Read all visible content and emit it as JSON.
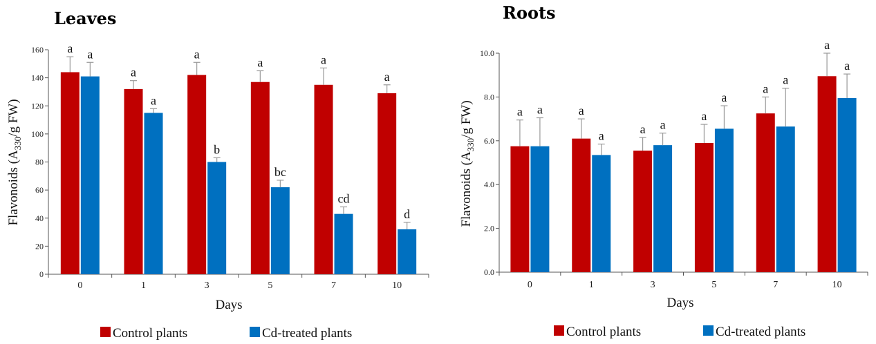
{
  "colors": {
    "control": "#c00000",
    "cd": "#0070c0"
  },
  "legend": {
    "control_label": "Control plants",
    "cd_label": "Cd-treated plants"
  },
  "chart_data": [
    {
      "type": "bar",
      "title": "Leaves",
      "xlabel": "Days",
      "ylabel": "Flavonoids (A330/g FW)",
      "ylabel_parts": {
        "pre": "Flavonoids (A",
        "sub": "330",
        "post": "/g FW)"
      },
      "ylim": [
        0,
        160
      ],
      "yticks": [
        0,
        20,
        40,
        60,
        80,
        100,
        120,
        140,
        160
      ],
      "ytick_labels": [
        "0",
        "20",
        "40",
        "60",
        "80",
        "100",
        "120",
        "140",
        "160"
      ],
      "categories": [
        "0",
        "1",
        "3",
        "5",
        "7",
        "10"
      ],
      "series": [
        {
          "name": "Control plants",
          "values": [
            144,
            132,
            142,
            137,
            135,
            129
          ],
          "errors": [
            11,
            6,
            9,
            8,
            12,
            6
          ],
          "letters": [
            "a",
            "a",
            "a",
            "a",
            "a",
            "a"
          ]
        },
        {
          "name": "Cd-treated plants",
          "values": [
            141,
            115,
            80,
            62,
            43,
            32
          ],
          "errors": [
            10,
            3,
            3,
            5,
            5,
            5
          ],
          "letters": [
            "a",
            "a",
            "b",
            "bc",
            "cd",
            "d"
          ]
        }
      ]
    },
    {
      "type": "bar",
      "title": "Roots",
      "xlabel": "Days",
      "ylabel": "Flavonoids (A330/g FW)",
      "ylabel_parts": {
        "pre": "Flavonoids (A",
        "sub": "330",
        "post": "/g FW)"
      },
      "ylim": [
        0,
        10
      ],
      "yticks": [
        0,
        2,
        4,
        6,
        8,
        10
      ],
      "ytick_labels": [
        "0.0",
        "2.0",
        "4.0",
        "6.0",
        "8.0",
        "10.0"
      ],
      "categories": [
        "0",
        "1",
        "3",
        "5",
        "7",
        "10"
      ],
      "series": [
        {
          "name": "Control plants",
          "values": [
            5.75,
            6.1,
            5.55,
            5.9,
            7.25,
            8.95
          ],
          "errors": [
            1.2,
            0.9,
            0.6,
            0.85,
            0.75,
            1.05
          ],
          "letters": [
            "a",
            "a",
            "a",
            "a",
            "a",
            "a"
          ]
        },
        {
          "name": "Cd-treated plants",
          "values": [
            5.75,
            5.35,
            5.8,
            6.55,
            6.65,
            7.95
          ],
          "errors": [
            1.3,
            0.5,
            0.55,
            1.05,
            1.75,
            1.1
          ],
          "letters": [
            "a",
            "a",
            "a",
            "a",
            "a",
            "a"
          ]
        }
      ]
    }
  ]
}
